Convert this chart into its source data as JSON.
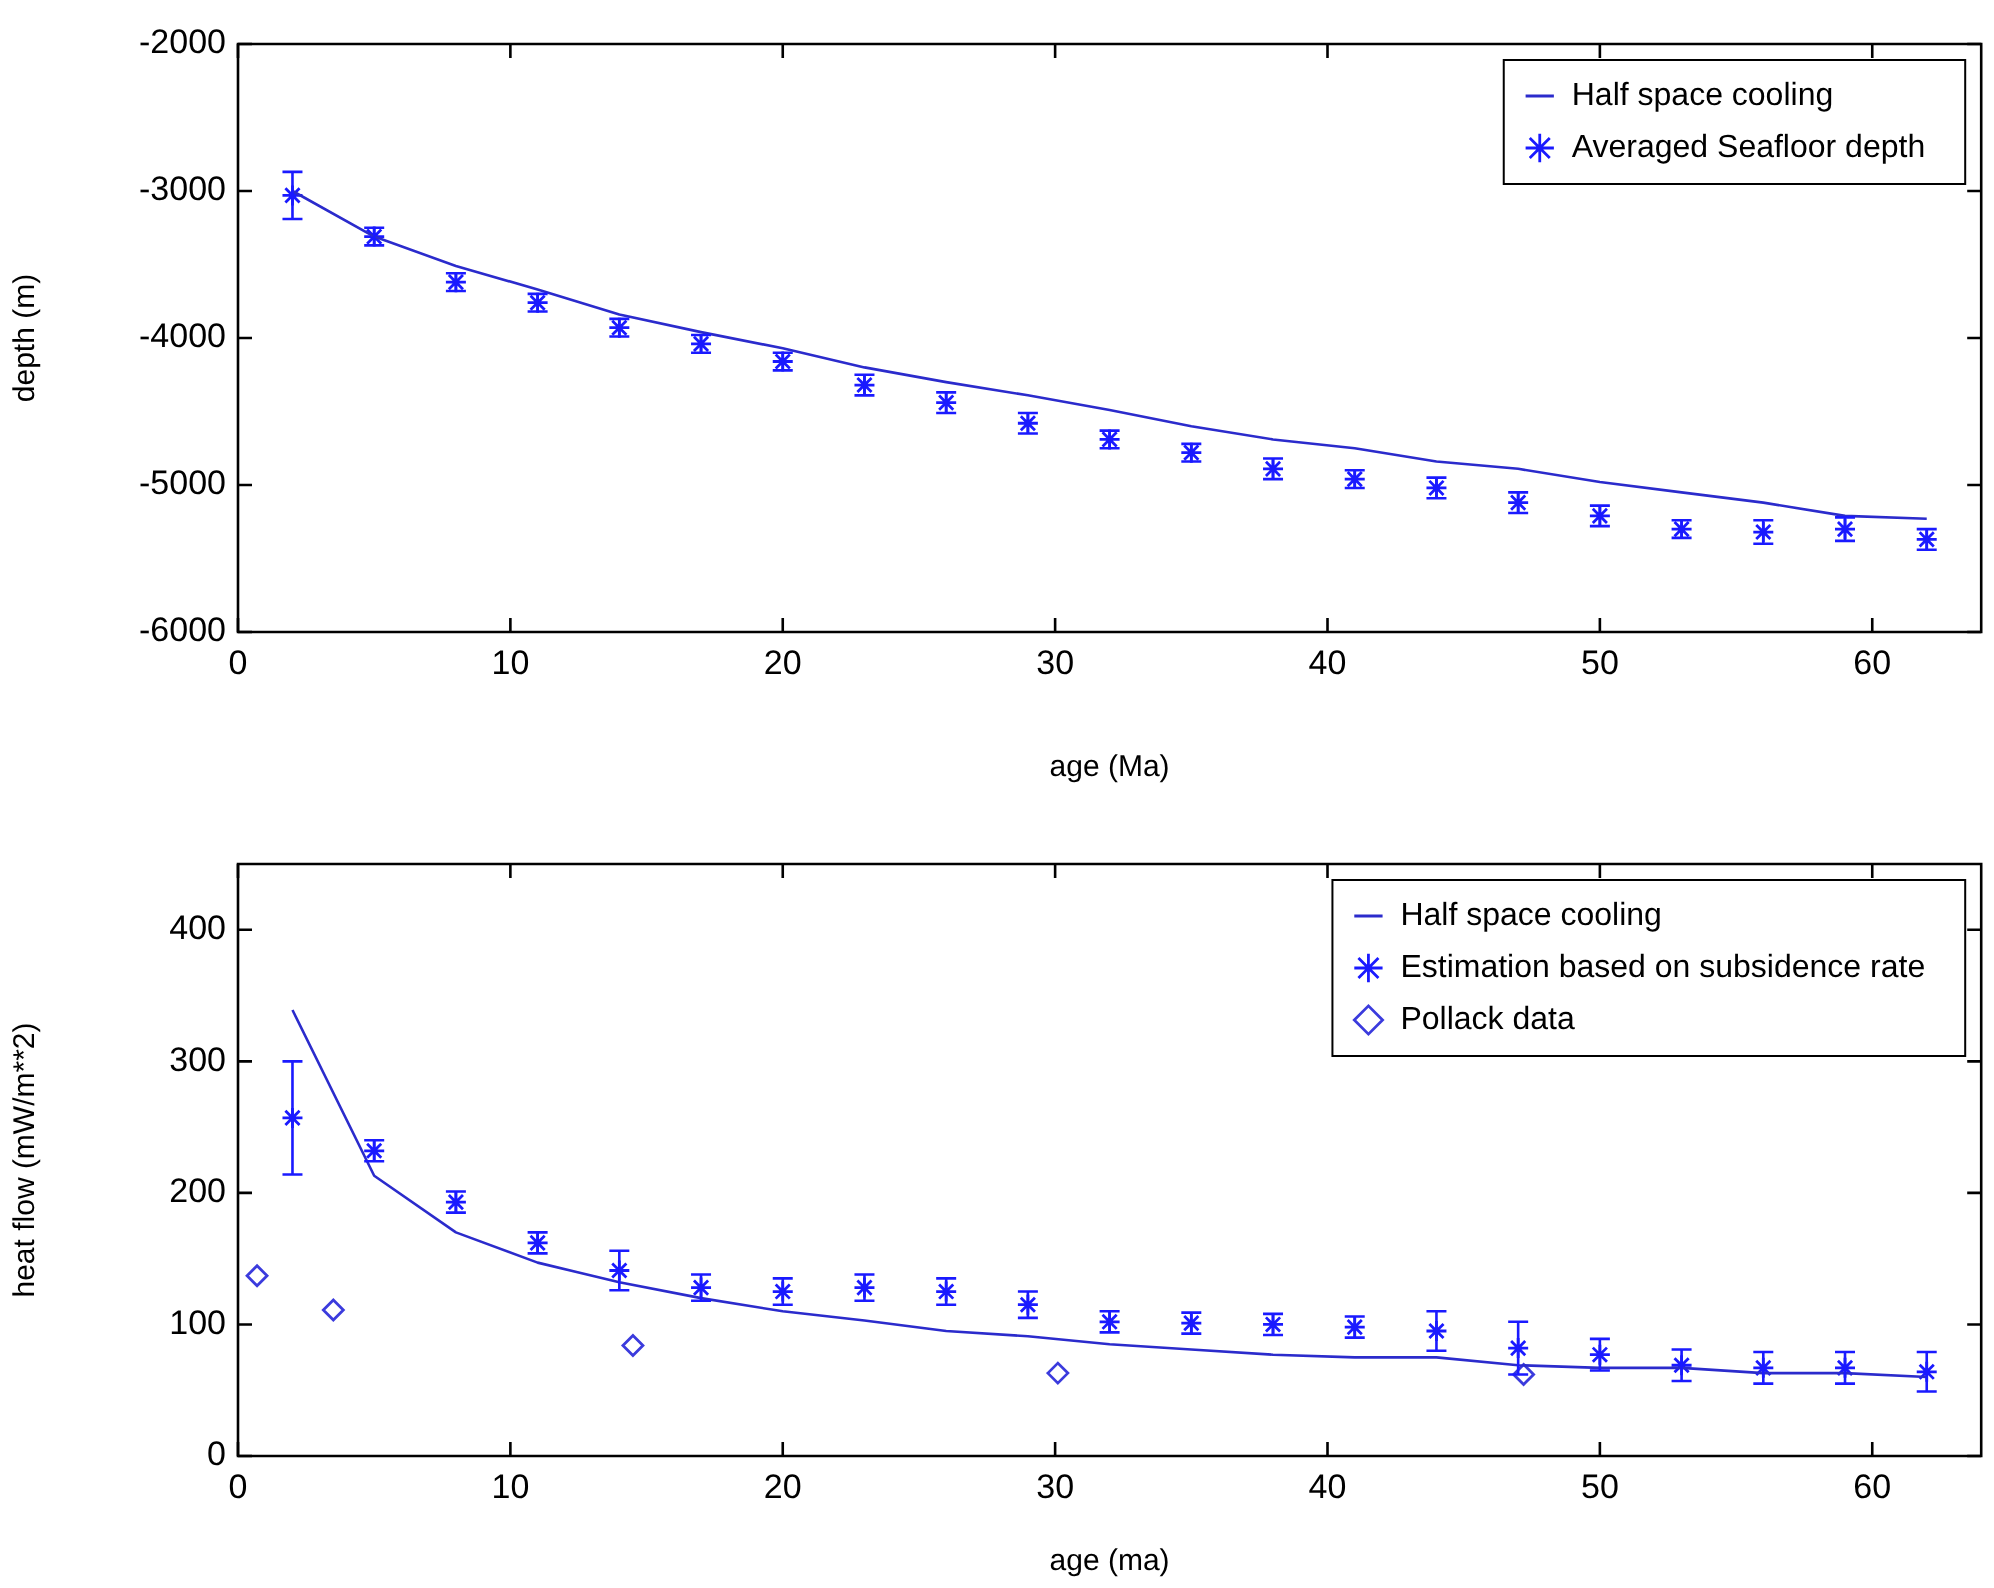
{
  "chart_data": [
    {
      "type": "scatter",
      "xlabel": "age (Ma)",
      "ylabel": "depth (m)",
      "xlim": [
        0,
        64
      ],
      "xticks": [
        0,
        10,
        20,
        30,
        40,
        50,
        60
      ],
      "ylim": [
        -6000,
        -2000
      ],
      "yticks": [
        -6000,
        -5000,
        -4000,
        -3000,
        -2000
      ],
      "grid": false,
      "legend": "top right",
      "series": [
        {
          "name": "Half space cooling",
          "type": "line",
          "marker": "none",
          "line_style": "solid",
          "color": "#2b2bcc",
          "x": [
            2,
            5,
            8,
            11,
            14,
            17,
            20,
            23,
            26,
            29,
            32,
            35,
            38,
            41,
            44,
            47,
            50,
            53,
            56,
            59,
            62
          ],
          "values": [
            -3000,
            -3310,
            -3510,
            -3670,
            -3840,
            -3960,
            -4070,
            -4200,
            -4300,
            -4390,
            -4490,
            -4600,
            -4690,
            -4750,
            -4840,
            -4890,
            -4980,
            -5050,
            -5120,
            -5210,
            -5230
          ]
        },
        {
          "name": "Averaged Seafloor depth",
          "type": "scatter",
          "marker": "cross",
          "color": "#1a1aff",
          "x": [
            2,
            5,
            8,
            11,
            14,
            17,
            20,
            23,
            26,
            29,
            32,
            35,
            38,
            41,
            44,
            47,
            50,
            53,
            56,
            59,
            62
          ],
          "values": [
            -3030,
            -3310,
            -3620,
            -3760,
            -3930,
            -4040,
            -4160,
            -4320,
            -4440,
            -4580,
            -4690,
            -4780,
            -4890,
            -4960,
            -5020,
            -5120,
            -5210,
            -5300,
            -5320,
            -5300,
            -5370
          ],
          "errors": [
            160,
            60,
            60,
            60,
            60,
            60,
            60,
            70,
            70,
            70,
            60,
            60,
            70,
            60,
            70,
            70,
            70,
            60,
            80,
            80,
            70
          ]
        }
      ]
    },
    {
      "type": "scatter",
      "xlabel": "age (ma)",
      "ylabel": "heat flow (mW/m**2)",
      "xlim": [
        0,
        64
      ],
      "xticks": [
        0,
        10,
        20,
        30,
        40,
        50,
        60
      ],
      "ylim": [
        0,
        450
      ],
      "yticks": [
        0,
        100,
        200,
        300,
        400
      ],
      "grid": false,
      "legend": "top right",
      "series": [
        {
          "name": "Half space cooling",
          "type": "line",
          "marker": "none",
          "line_style": "solid",
          "color": "#2b2bcc",
          "x": [
            2,
            5,
            8,
            11,
            14,
            17,
            20,
            23,
            26,
            29,
            32,
            35,
            38,
            41,
            44,
            47,
            50,
            53,
            56,
            59,
            62
          ],
          "values": [
            339,
            213,
            170,
            147,
            132,
            120,
            110,
            103,
            95,
            91,
            85,
            81,
            77,
            75,
            75,
            69,
            67,
            67,
            63,
            63,
            60
          ]
        },
        {
          "name": "Estimation based on subsidence rate",
          "type": "scatter",
          "marker": "cross",
          "color": "#1a1aff",
          "x": [
            2,
            5,
            8,
            11,
            14,
            17,
            20,
            23,
            26,
            29,
            32,
            35,
            38,
            41,
            44,
            47,
            50,
            53,
            56,
            59,
            62
          ],
          "values": [
            257,
            232,
            193,
            162,
            141,
            128,
            125,
            128,
            125,
            115,
            102,
            101,
            100,
            98,
            95,
            82,
            77,
            69,
            67,
            67,
            64
          ],
          "errors": [
            43,
            8,
            8,
            8,
            15,
            10,
            10,
            10,
            10,
            10,
            8,
            8,
            8,
            8,
            15,
            20,
            12,
            12,
            12,
            12,
            15
          ]
        },
        {
          "name": "Pollack data",
          "type": "scatter",
          "marker": "diamond",
          "color": "#3b3bdd",
          "x": [
            0.7,
            3.5,
            14.5,
            30.1,
            47.2
          ],
          "values": [
            137,
            111,
            84,
            63,
            62
          ]
        }
      ]
    }
  ]
}
